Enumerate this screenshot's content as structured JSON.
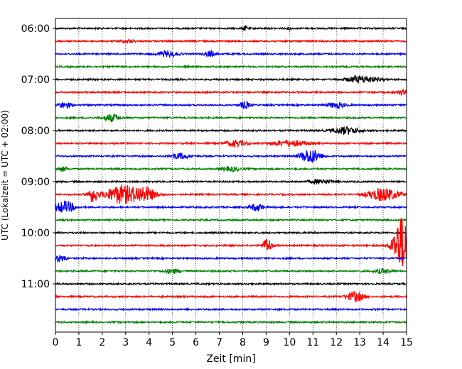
{
  "chart_data": {
    "type": "line",
    "title": "",
    "xlabel": "Zeit  [min]",
    "ylabel": "UTC (Lokalzeit = UTC + 02:00)",
    "xlim": [
      0,
      15
    ],
    "x_ticks": [
      0,
      1,
      2,
      3,
      4,
      5,
      6,
      7,
      8,
      9,
      10,
      11,
      12,
      13,
      14,
      15
    ],
    "y_tick_labels": [
      "06:00",
      "07:00",
      "08:00",
      "09:00",
      "10:00",
      "11:00"
    ],
    "y_tick_trace_index": [
      0,
      4,
      8,
      12,
      16,
      20
    ],
    "trace_interval_minutes": 15,
    "start_time": "06:00",
    "grid": "vertical-dotted",
    "colors": [
      "#000000",
      "#ff0000",
      "#0000ff",
      "#008000"
    ],
    "traces": [
      {
        "time": "06:00",
        "color": "#000000",
        "events": [
          {
            "t": 8.1,
            "amp": 3,
            "dur": 0.15
          },
          {
            "t": 10.0,
            "amp": 2,
            "dur": 0.1
          }
        ]
      },
      {
        "time": "06:15",
        "color": "#ff0000",
        "events": [
          {
            "t": 3.1,
            "amp": 2,
            "dur": 0.4
          }
        ]
      },
      {
        "time": "06:30",
        "color": "#0000ff",
        "events": [
          {
            "t": 4.8,
            "amp": 4,
            "dur": 0.6
          },
          {
            "t": 6.6,
            "amp": 4,
            "dur": 0.3
          }
        ]
      },
      {
        "time": "06:45",
        "color": "#008000",
        "events": []
      },
      {
        "time": "07:00",
        "color": "#000000",
        "events": [
          {
            "t": 13.1,
            "amp": 5,
            "dur": 0.9
          }
        ]
      },
      {
        "time": "07:15",
        "color": "#ff0000",
        "events": [
          {
            "t": 14.8,
            "amp": 3,
            "dur": 0.3
          }
        ]
      },
      {
        "time": "07:30",
        "color": "#0000ff",
        "events": [
          {
            "t": 0.4,
            "amp": 4,
            "dur": 0.4
          },
          {
            "t": 8.1,
            "amp": 5,
            "dur": 0.3
          },
          {
            "t": 12.0,
            "amp": 4,
            "dur": 0.5
          }
        ]
      },
      {
        "time": "07:45",
        "color": "#008000",
        "events": [
          {
            "t": 2.4,
            "amp": 5,
            "dur": 0.5
          }
        ]
      },
      {
        "time": "08:00",
        "color": "#000000",
        "events": [
          {
            "t": 12.4,
            "amp": 5,
            "dur": 0.8
          }
        ]
      },
      {
        "time": "08:15",
        "color": "#ff0000",
        "events": [
          {
            "t": 7.7,
            "amp": 4,
            "dur": 0.6
          },
          {
            "t": 10.0,
            "amp": 4,
            "dur": 1.0
          }
        ]
      },
      {
        "time": "08:30",
        "color": "#0000ff",
        "events": [
          {
            "t": 5.3,
            "amp": 4,
            "dur": 0.6
          },
          {
            "t": 10.9,
            "amp": 10,
            "dur": 0.6
          }
        ]
      },
      {
        "time": "08:45",
        "color": "#008000",
        "events": [
          {
            "t": 0.3,
            "amp": 3,
            "dur": 0.3
          },
          {
            "t": 7.5,
            "amp": 3,
            "dur": 0.6
          }
        ]
      },
      {
        "time": "09:00",
        "color": "#000000",
        "events": [
          {
            "t": 11.3,
            "amp": 3,
            "dur": 0.7
          }
        ]
      },
      {
        "time": "09:15",
        "color": "#ff0000",
        "events": [
          {
            "t": 1.6,
            "amp": 10,
            "dur": 0.3
          },
          {
            "t": 2.8,
            "amp": 13,
            "dur": 0.9
          },
          {
            "t": 3.8,
            "amp": 10,
            "dur": 0.7
          },
          {
            "t": 14.0,
            "amp": 9,
            "dur": 0.9
          }
        ]
      },
      {
        "time": "09:30",
        "color": "#0000ff",
        "events": [
          {
            "t": 0.4,
            "amp": 8,
            "dur": 0.6
          },
          {
            "t": 8.6,
            "amp": 5,
            "dur": 0.4
          }
        ]
      },
      {
        "time": "09:45",
        "color": "#008000",
        "events": []
      },
      {
        "time": "10:00",
        "color": "#000000",
        "events": []
      },
      {
        "time": "10:15",
        "color": "#ff0000",
        "events": [
          {
            "t": 9.05,
            "amp": 11,
            "dur": 0.25
          },
          {
            "t": 14.8,
            "amp": 40,
            "dur": 0.5
          }
        ]
      },
      {
        "time": "10:30",
        "color": "#0000ff",
        "events": [
          {
            "t": 0.2,
            "amp": 5,
            "dur": 0.3
          }
        ]
      },
      {
        "time": "10:45",
        "color": "#008000",
        "events": [
          {
            "t": 5.0,
            "amp": 3,
            "dur": 0.5
          },
          {
            "t": 14.0,
            "amp": 3,
            "dur": 0.5
          }
        ]
      },
      {
        "time": "11:00",
        "color": "#000000",
        "events": []
      },
      {
        "time": "11:15",
        "color": "#ff0000",
        "events": [
          {
            "t": 12.8,
            "amp": 7,
            "dur": 0.5
          }
        ]
      },
      {
        "time": "11:30",
        "color": "#0000ff",
        "events": []
      },
      {
        "time": "11:45",
        "color": "#008000",
        "events": []
      }
    ]
  }
}
